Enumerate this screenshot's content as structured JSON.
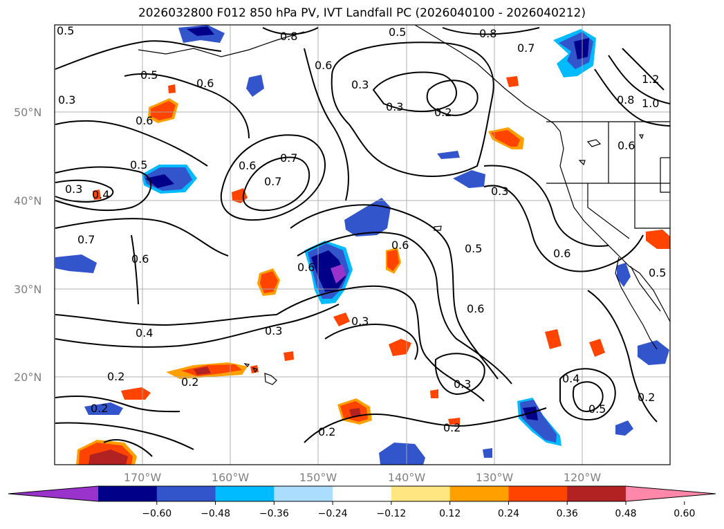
{
  "title": "2026032800 F012 850 hPa PV, IVT Landfall PC (2026040100 - 2026040212)",
  "lat_labels": [
    "50°N",
    "40°N",
    "30°N",
    "20°N"
  ],
  "lon_labels": [
    "170°W",
    "160°W",
    "150°W",
    "140°W",
    "130°W",
    "120°W"
  ],
  "contour_labels": [
    "0.5",
    "0.8",
    "0.5",
    "0.8",
    "0.7",
    "0.5",
    "0.6",
    "0.6",
    "0.3",
    "0.3",
    "0.2",
    "0.6",
    "0.7",
    "0.6",
    "0.7",
    "0.5",
    "0.6",
    "0.3",
    "0.4",
    "0.7",
    "0.6",
    "0.3",
    "0.6",
    "0.6",
    "0.5",
    "0.6",
    "0.3",
    "0.4",
    "0.3",
    "0.2",
    "0.2",
    "0.3",
    "0.2",
    "0.2",
    "0.4",
    "0.5",
    "0.2",
    "1.2",
    "1.0",
    "0.8",
    "0.6",
    "0.5",
    "0.2",
    "0.3"
  ],
  "colorbar": {
    "ticks": [
      "−0.60",
      "−0.48",
      "−0.36",
      "−0.24",
      "−0.12",
      "0.12",
      "0.24",
      "0.36",
      "0.48",
      "0.60"
    ],
    "colors": [
      "#9933cc",
      "#000088",
      "#3355cc",
      "#00bbff",
      "#aaddff",
      "#ffffff",
      "#ffe680",
      "#ffa000",
      "#ff4400",
      "#b22222",
      "#ff88aa"
    ]
  }
}
